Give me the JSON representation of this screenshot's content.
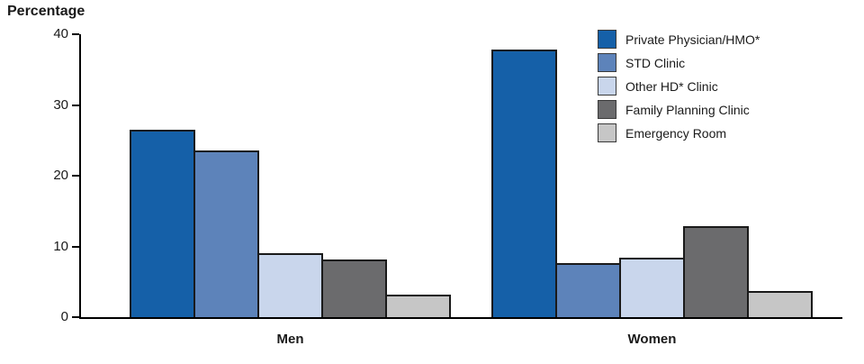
{
  "chart_data": {
    "type": "bar",
    "title": "Percentage",
    "ylabel": "Percentage",
    "xlabel": "",
    "categories": [
      "Men",
      "Women"
    ],
    "series": [
      {
        "name": "Private Physician/HMO*",
        "color": "#1560a8",
        "values": [
          26.5,
          37.8
        ]
      },
      {
        "name": "STD Clinic",
        "color": "#5d83ba",
        "values": [
          23.6,
          7.7
        ]
      },
      {
        "name": "Other HD* Clinic",
        "color": "#c9d6ec",
        "values": [
          9.1,
          8.4
        ]
      },
      {
        "name": "Family Planning Clinic",
        "color": "#6b6b6d",
        "values": [
          8.2,
          12.9
        ]
      },
      {
        "name": "Emergency Room",
        "color": "#c6c6c6",
        "values": [
          3.2,
          3.7
        ]
      }
    ],
    "ylim": [
      0,
      40
    ],
    "yticks": [
      0,
      10,
      20,
      30,
      40
    ],
    "grid": false,
    "legend_position": "top-right"
  }
}
